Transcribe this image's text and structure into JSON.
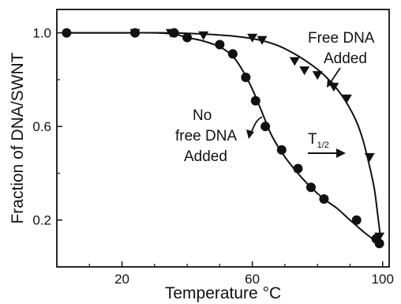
{
  "chart_data": {
    "type": "scatter",
    "xlabel": "Temperature °C",
    "ylabel": "Fraction of DNA/SWNT",
    "xlim": [
      0,
      102
    ],
    "ylim": [
      0,
      1.1
    ],
    "xticks": [
      20,
      60,
      100
    ],
    "xtick_labels": [
      "20",
      "60",
      "100"
    ],
    "yticks": [
      0.2,
      0.6,
      1.0
    ],
    "ytick_labels": [
      "0.2",
      "0.6",
      "1.0"
    ],
    "grid": false,
    "series": [
      {
        "name": "",
        "marker": "triangle-down",
        "x": [
          24,
          35,
          45,
          60,
          63,
          73,
          76,
          80,
          85,
          89,
          96,
          99
        ],
        "y": [
          1.0,
          1.0,
          0.99,
          0.98,
          0.97,
          0.88,
          0.84,
          0.82,
          0.77,
          0.72,
          0.47,
          0.13
        ],
        "curve_x": [
          3,
          20,
          35,
          45,
          55,
          62,
          68,
          73,
          78,
          82,
          86,
          89,
          92,
          94,
          96,
          97.5,
          98.5,
          99.3
        ],
        "curve_y": [
          1.0,
          1.0,
          1.0,
          0.995,
          0.985,
          0.97,
          0.945,
          0.91,
          0.865,
          0.82,
          0.76,
          0.7,
          0.62,
          0.54,
          0.43,
          0.33,
          0.22,
          0.13
        ]
      },
      {
        "name": "",
        "marker": "circle",
        "x": [
          3,
          24,
          36,
          40,
          50,
          54,
          58,
          61,
          64,
          69,
          74,
          78,
          82,
          92,
          98,
          99
        ],
        "y": [
          1.0,
          1.0,
          1.0,
          0.98,
          0.95,
          0.91,
          0.81,
          0.71,
          0.6,
          0.5,
          0.42,
          0.34,
          0.29,
          0.2,
          0.12,
          0.1
        ],
        "curve_x": [
          3,
          20,
          30,
          36,
          40,
          45,
          50,
          54,
          57,
          60,
          63,
          66,
          70,
          74,
          78,
          82,
          86,
          90,
          95,
          99
        ],
        "curve_y": [
          1.0,
          1.0,
          1.0,
          0.995,
          0.98,
          0.965,
          0.94,
          0.9,
          0.84,
          0.76,
          0.66,
          0.56,
          0.47,
          0.4,
          0.34,
          0.29,
          0.25,
          0.2,
          0.14,
          0.1
        ]
      }
    ],
    "annotations": [
      {
        "text": "Free DNA"
      },
      {
        "text": "Added"
      },
      {
        "text": "No"
      },
      {
        "text": "free DNA"
      },
      {
        "text": "Added"
      },
      {
        "text": "T"
      },
      {
        "text": "1/2"
      }
    ]
  }
}
